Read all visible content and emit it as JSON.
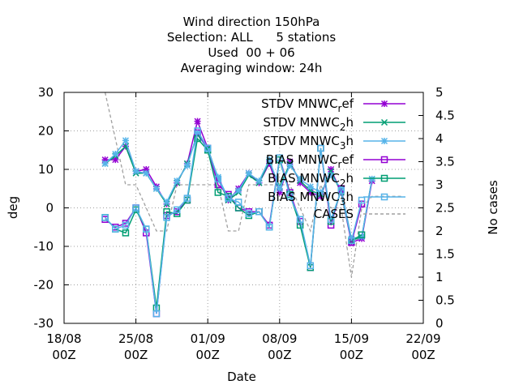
{
  "title_lines": [
    "Wind direction 150hPa",
    "Selection: ALL      5 stations",
    "Used  00 + 06",
    "Averaging window: 24h"
  ],
  "chart_data": {
    "type": "line",
    "title": "Wind direction 150hPa",
    "xlabel": "Date",
    "ylabel": "deg",
    "y2label": "No cases",
    "xlim": [
      0,
      35
    ],
    "ylim": [
      -30,
      30
    ],
    "y2lim": [
      0,
      5
    ],
    "x_ticks": [
      {
        "x": 0,
        "line1": "18/08",
        "line2": "00Z"
      },
      {
        "x": 7,
        "line1": "25/08",
        "line2": "00Z"
      },
      {
        "x": 14,
        "line1": "01/09",
        "line2": "00Z"
      },
      {
        "x": 21,
        "line1": "08/09",
        "line2": "00Z"
      },
      {
        "x": 28,
        "line1": "15/09",
        "line2": "00Z"
      },
      {
        "x": 35,
        "line1": "22/09",
        "line2": "00Z"
      }
    ],
    "y_ticks": [
      -30,
      -20,
      -10,
      0,
      10,
      20,
      30
    ],
    "y2_ticks": [
      "0",
      "0.5",
      "1",
      "1.5",
      "2",
      "2.5",
      "3",
      "3.5",
      "4",
      "4.5",
      "5"
    ],
    "grid": true,
    "legend_position": "top-right",
    "series": [
      {
        "name": "STDV MNWC_ref",
        "label_main": "STDV MNWC",
        "label_sub": "r",
        "label_rest": "ef",
        "color": "#9400d3",
        "marker": "star",
        "x": [
          4,
          5,
          6,
          7,
          8,
          9,
          10,
          11,
          12,
          13,
          14,
          15,
          16,
          17,
          18,
          19,
          20,
          21,
          22,
          23,
          24,
          25,
          26,
          27,
          28,
          29,
          30
        ],
        "y": [
          12.5,
          12.5,
          16,
          9.5,
          10,
          5.5,
          1,
          6.5,
          11.5,
          22.5,
          15.5,
          7.5,
          2,
          5,
          9,
          6.5,
          11.5,
          4,
          12,
          6.5,
          4,
          3,
          10,
          4,
          -9,
          -8,
          7
        ]
      },
      {
        "name": "STDV MNWC_2h",
        "label_main": "STDV MNWC",
        "label_sub": "2",
        "label_rest": "h",
        "color": "#009e73",
        "marker": "x",
        "x": [
          4,
          5,
          6,
          7,
          8,
          9,
          10,
          11,
          12,
          13,
          14,
          15,
          16,
          17,
          18,
          19,
          20,
          21,
          22,
          23,
          24,
          25,
          26,
          27,
          28,
          29,
          30
        ],
        "y": [
          11.5,
          13.5,
          16,
          9,
          9,
          5,
          1,
          6.5,
          11.5,
          19,
          15.5,
          7.5,
          2,
          4,
          8.5,
          6.5,
          12,
          5.5,
          11.5,
          7,
          4.5,
          3.5,
          9.5,
          4,
          -8.5,
          -7.5,
          7.5
        ]
      },
      {
        "name": "STDV MNWC_3h",
        "label_main": "STDV MNWC",
        "label_sub": "3",
        "label_rest": "h",
        "color": "#56b4e9",
        "marker": "star",
        "x": [
          4,
          5,
          6,
          7,
          8,
          9,
          10,
          11,
          12,
          13,
          14,
          15,
          16,
          17,
          18,
          19,
          20,
          21,
          22,
          23,
          24,
          25,
          26,
          27,
          28,
          29,
          30
        ],
        "y": [
          11.5,
          14,
          17.5,
          9.5,
          9,
          5,
          1.5,
          7,
          11,
          19.5,
          15,
          8,
          2.5,
          4.5,
          9,
          7,
          12.5,
          5,
          11,
          7.5,
          5.5,
          4,
          8.5,
          5,
          -8,
          -7.5,
          7.5
        ]
      },
      {
        "name": "BIAS MNWC_ref",
        "label_main": "BIAS MNWC",
        "label_sub": "r",
        "label_rest": "ef",
        "color": "#9400d3",
        "marker": "box",
        "x": [
          4,
          5,
          6,
          7,
          8,
          9,
          10,
          11,
          12,
          13,
          14,
          15,
          16,
          17,
          18,
          19,
          20,
          21,
          22,
          23,
          24,
          25,
          26,
          27,
          28,
          29
        ],
        "y": [
          -3,
          -5,
          -4,
          0,
          -6.5,
          -27.5,
          -2,
          -1,
          2,
          19.5,
          15.5,
          6,
          3.5,
          0,
          -1,
          -1,
          -4.5,
          13,
          4,
          -3.5,
          -15.5,
          15.5,
          -4.5,
          5,
          -9,
          1
        ]
      },
      {
        "name": "BIAS MNWC_2h",
        "label_main": "BIAS MNWC",
        "label_sub": "2",
        "label_rest": "h",
        "color": "#009e73",
        "marker": "box",
        "x": [
          4,
          5,
          6,
          7,
          8,
          9,
          10,
          11,
          12,
          13,
          14,
          15,
          16,
          17,
          18,
          19,
          20,
          21,
          22,
          23,
          24,
          25,
          26,
          27,
          28,
          29
        ],
        "y": [
          -2.5,
          -5.5,
          -6.5,
          -0.5,
          -5.5,
          -26,
          -1,
          -1.5,
          2,
          18,
          15,
          4,
          3,
          0,
          -2,
          -1,
          -5,
          12.5,
          3.5,
          -4.5,
          -15.5,
          15.5,
          -3.5,
          4.5,
          -8.5,
          -7
        ]
      },
      {
        "name": "BIAS MNWC_3h",
        "label_main": "BIAS MNWC",
        "label_sub": "3",
        "label_rest": "h",
        "color": "#56b4e9",
        "marker": "box",
        "x": [
          4,
          5,
          6,
          7,
          8,
          9,
          10,
          11,
          12,
          13,
          14,
          15,
          16,
          17,
          18,
          19,
          20,
          21,
          22,
          23,
          24,
          25,
          26,
          27,
          28,
          29
        ],
        "y": [
          -2.5,
          -5.5,
          -4.5,
          0,
          -5.5,
          -27.5,
          -2.5,
          -0.5,
          2.5,
          20,
          15.5,
          7.5,
          2.5,
          1.5,
          -1.5,
          -1,
          -5,
          13,
          3,
          -3,
          -15,
          15.5,
          -3,
          4.5,
          -8.5,
          2
        ]
      },
      {
        "name": "CASES",
        "label_main": "CASES",
        "label_sub": "",
        "label_rest": "",
        "color": "#a0a0a0",
        "marker": "none",
        "axis": "y2",
        "dashed": true,
        "x": [
          4,
          6,
          7,
          8,
          9,
          10,
          11,
          12,
          13,
          14,
          15,
          16,
          17,
          18,
          19,
          20,
          21,
          22,
          23,
          24,
          25,
          26,
          27,
          28,
          29,
          30,
          31,
          32,
          33
        ],
        "y": [
          5,
          3,
          3,
          2.5,
          2,
          2,
          3,
          3,
          3,
          3,
          3,
          2,
          2,
          3,
          3,
          3,
          3,
          3,
          2.5,
          2,
          3,
          2.5,
          2.5,
          1,
          2.5,
          2.75,
          2.75,
          2.75,
          2.75
        ]
      }
    ]
  }
}
